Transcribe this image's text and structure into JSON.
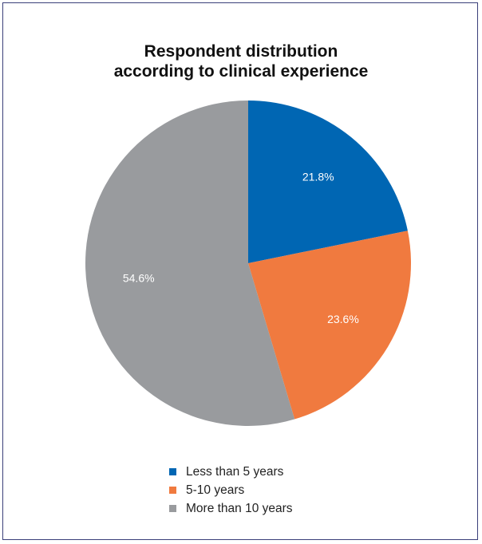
{
  "chart_data": {
    "type": "pie",
    "title": [
      "Respondent distribution",
      "according to clinical experience"
    ],
    "slices": [
      {
        "label": "Less than 5 years",
        "value": 21.8,
        "display": "21.8%",
        "color": "#0066b3"
      },
      {
        "label": "5-10 years",
        "value": 23.6,
        "display": "23.6%",
        "color": "#f07a3f"
      },
      {
        "label": "More than 10 years",
        "value": 54.6,
        "display": "54.6%",
        "color": "#999b9e"
      }
    ],
    "start_angle_deg": 0,
    "direction": "clockwise",
    "legend_position": "bottom"
  }
}
